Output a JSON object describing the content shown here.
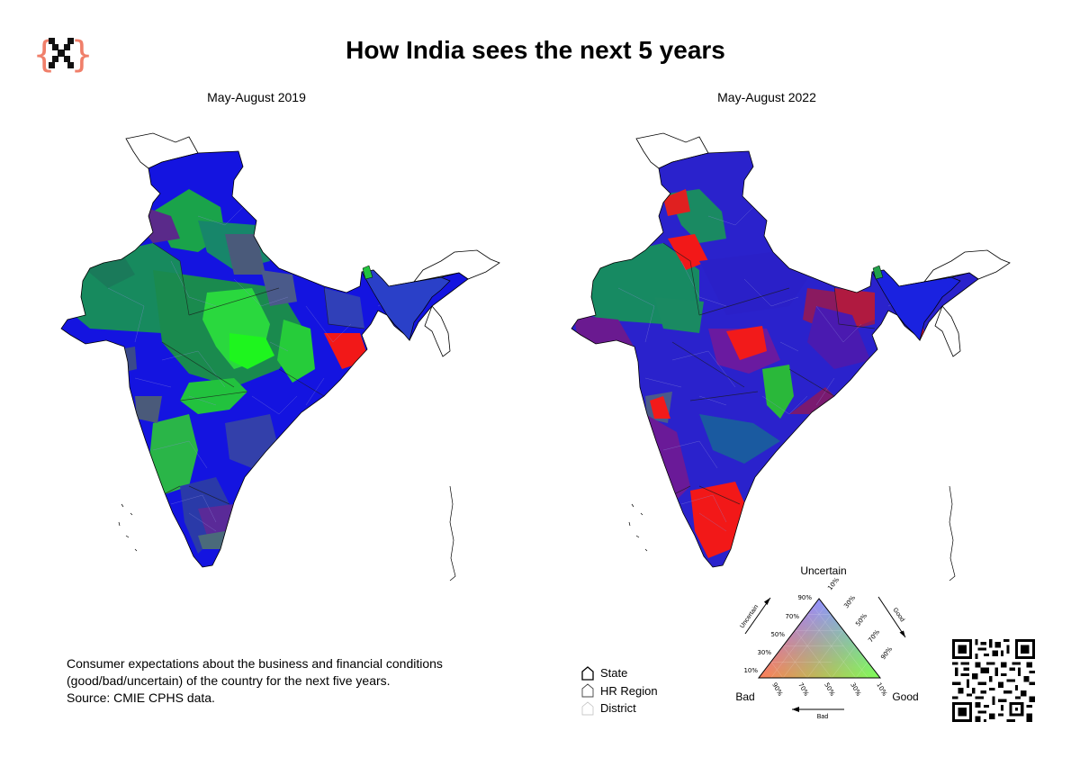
{
  "title": "How India sees the next 5 years",
  "panels": [
    {
      "subtitle": "May-August 2019"
    },
    {
      "subtitle": "May-August 2022"
    }
  ],
  "description": [
    "Consumer expectations about the business and financial conditions",
    "(good/bad/uncertain) of the country for the next five years.",
    "Source: CMIE CPHS data."
  ],
  "boundary_legend": {
    "state": "State",
    "hr_region": "HR Region",
    "district": "District"
  },
  "ternary_legend": {
    "corner_top": "Uncertain",
    "corner_left": "Bad",
    "corner_right": "Good",
    "edge_left": "Uncertain",
    "edge_right": "Good",
    "edge_bottom": "Bad",
    "left_ticks": [
      "90%",
      "70%",
      "50%",
      "30%",
      "10%"
    ],
    "right_ticks": [
      "10%",
      "30%",
      "50%",
      "70%",
      "90%"
    ],
    "bottom_ticks": [
      "90%",
      "70%",
      "50%",
      "30%",
      "10%"
    ],
    "colors": {
      "uncertain": "#1f1fff",
      "bad": "#ff1f1f",
      "good": "#1fff1f"
    }
  },
  "logo_icon": "x-braces-logo",
  "qr_icon": "qr-code",
  "colors": {
    "blue": "#1212e6",
    "blue_dark": "#2a2acc",
    "teal": "#1a8a62",
    "green": "#22d64a",
    "bright_green": "#1ef51e",
    "purple": "#5a1aa0",
    "red": "#f21a1a",
    "gray_blue": "#4b5a7a",
    "logo": "#f07f6a"
  }
}
